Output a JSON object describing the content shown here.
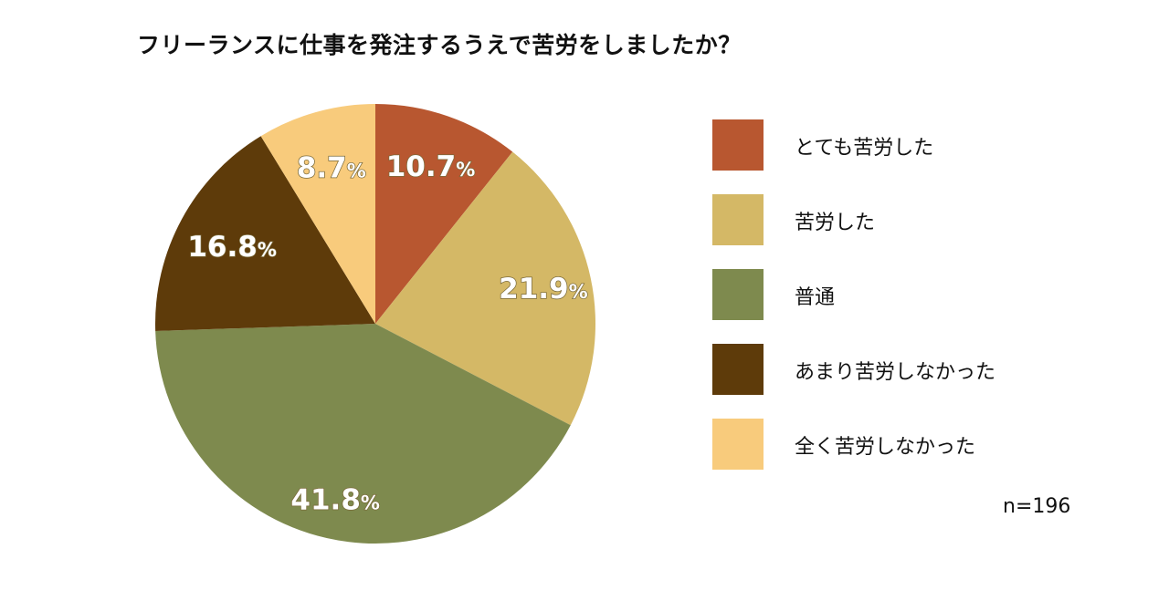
{
  "chart_data": {
    "type": "pie",
    "title": "フリーランスに仕事を発注するうえで苦労をしましたか？",
    "categories": [
      "とても苦労した",
      "苦労した",
      "普通",
      "あまり苦労しなかった",
      "全く苦労しなかった"
    ],
    "values": [
      10.7,
      21.9,
      41.8,
      16.8,
      8.7
    ],
    "value_labels": [
      "10.7",
      "21.9",
      "41.8",
      "16.8",
      "8.7"
    ],
    "unit": "%",
    "colors": [
      "#B85730",
      "#D4B866",
      "#7E8A4E",
      "#5E3B0A",
      "#F8CB7C"
    ],
    "legend_placement": "right",
    "note": "n=196"
  }
}
